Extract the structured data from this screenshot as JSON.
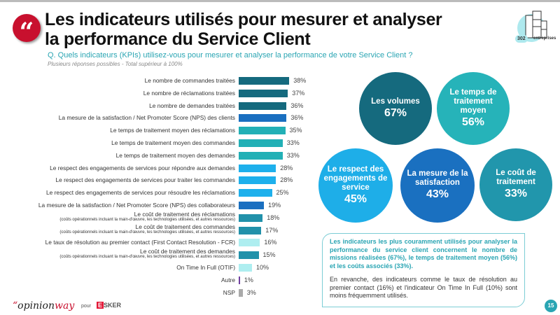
{
  "header": {
    "title_line1": "Les indicateurs utilisés pour mesurer et analyser",
    "title_line2": "la performance du Service Client",
    "question": "Q. Quels indicateurs (KPIs) utilisez-vous pour mesurer et analyser la performance de votre Service Client ?",
    "note": "Plusieurs réponses possibles - Total supérieur à 100%",
    "sample_count": "302",
    "sample_label": "entreprises"
  },
  "chart_data": {
    "type": "bar",
    "orientation": "horizontal",
    "xlim": [
      0,
      40
    ],
    "grid": false,
    "categories": [
      {
        "label": "Le nombre de commandes traitées",
        "sub": "",
        "value": 38,
        "color": "#156a7e"
      },
      {
        "label": "Le nombre de réclamations traitées",
        "sub": "",
        "value": 37,
        "color": "#156a7e"
      },
      {
        "label": "Le nombre de demandes traitées",
        "sub": "",
        "value": 36,
        "color": "#156a7e"
      },
      {
        "label": "La mesure de la satisfaction / Net Promoter Score (NPS) des clients",
        "sub": "",
        "value": 36,
        "color": "#1a6fc0"
      },
      {
        "label": "Le temps de traitement moyen des réclamations",
        "sub": "",
        "value": 35,
        "color": "#22b0b6"
      },
      {
        "label": "Le temps de traitement moyen des commandes",
        "sub": "",
        "value": 33,
        "color": "#22b0b6"
      },
      {
        "label": "Le temps de traitement moyen des demandes",
        "sub": "",
        "value": 33,
        "color": "#22b0b6"
      },
      {
        "label": "Le respect des engagements de services pour répondre aux demandes",
        "sub": "",
        "value": 28,
        "color": "#1eb0ec"
      },
      {
        "label": "Le respect des engagements de services pour traiter les commandes",
        "sub": "",
        "value": 28,
        "color": "#1eb0ec"
      },
      {
        "label": "Le respect des engagements de services pour résoudre les réclamations",
        "sub": "",
        "value": 25,
        "color": "#1eb0ec"
      },
      {
        "label": "La mesure de la satisfaction / Net Promoter Score (NPS) des collaborateurs",
        "sub": "",
        "value": 19,
        "color": "#1a6fc0"
      },
      {
        "label": "Le coût de traitement des réclamations",
        "sub": "(coûts opérationnels incluant la main-d'œuvre, les technologies utilisées, et autres ressources)",
        "value": 18,
        "color": "#2191aa"
      },
      {
        "label": "Le coût de traitement des commandes",
        "sub": "(coûts opérationnels incluant la main-d'œuvre, les technologies utilisées, et autres ressources)",
        "value": 17,
        "color": "#2191aa"
      },
      {
        "label": "Le taux de résolution au premier contact (First Contact Resolution - FCR)",
        "sub": "",
        "value": 16,
        "color": "#aeeef0"
      },
      {
        "label": "Le coût de traitement des demandes",
        "sub": "(coûts opérationnels incluant la main-d'œuvre, les technologies utilisées, et autres ressources)",
        "value": 15,
        "color": "#2191aa"
      },
      {
        "label": "On Time In Full (OTIF)",
        "sub": "",
        "value": 10,
        "color": "#aeeef0"
      },
      {
        "label": "Autre",
        "sub": "",
        "value": 1,
        "color": "#7040a0"
      },
      {
        "label": "NSP",
        "sub": "",
        "value": 3,
        "color": "#aaaaaa"
      }
    ]
  },
  "circles": [
    {
      "label": "Les volumes",
      "value": "67%",
      "color": "#156a7e"
    },
    {
      "label": "Le temps de traitement moyen",
      "value": "56%",
      "color": "#26b3b9"
    },
    {
      "label": "Le respect des engagements de service",
      "value": "45%",
      "color": "#1eaee8"
    },
    {
      "label": "La mesure de la satisfaction",
      "value": "43%",
      "color": "#1a70c0"
    },
    {
      "label": "Le coût de traitement",
      "value": "33%",
      "color": "#2196ac"
    }
  ],
  "summary": {
    "bold": "Les indicateurs les plus couramment utilisés pour analyser la performance du service client concernent le nombre de missions réalisées (67%), le temps de traitement moyen (56%) et les coûts associés (33%).",
    "text": "En revanche, des indicateurs comme le taux de résolution au premier contact (16%) et l'indicateur On Time In Full (10%) sont moins fréquemment utilisés."
  },
  "footer": {
    "logo_opinionway": "opinionway",
    "pour": "pour",
    "logo_esker": "ESKER",
    "page": "15"
  }
}
